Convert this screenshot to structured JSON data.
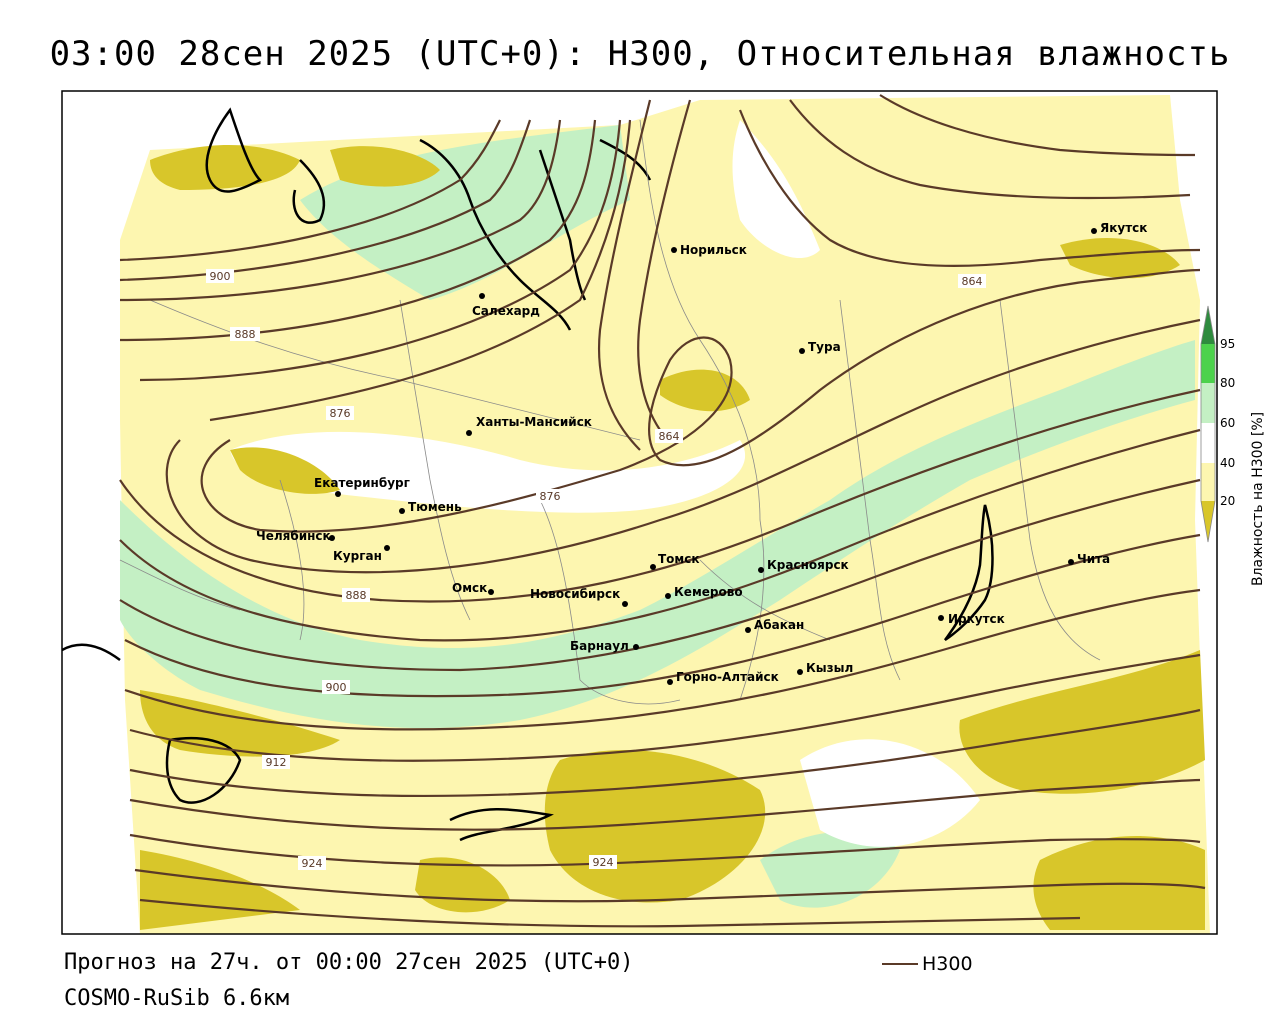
{
  "title": "03:00 28сен 2025 (UTC+0): H300, Относительная влажность",
  "footer": {
    "forecast": "Прогноз на 27ч. от 00:00 27сен 2025 (UTC+0)",
    "model": "COSMO-RuSib 6.6км",
    "legend_label": "H300",
    "legend_color": "#5a3a28"
  },
  "colorbar": {
    "title": "Влажность на H300 [%]",
    "ticks": [
      "95",
      "80",
      "60",
      "40",
      "20"
    ],
    "colors": {
      "c95": "#2e8b3e",
      "c80_95": "#4cd24c",
      "c60_80": "#c4f0c4",
      "c40_60": "#ffffff",
      "c20_40": "#fdf6b0",
      "c0_20": "#d8c62a"
    }
  },
  "cities": [
    {
      "name": "Норильск"
    },
    {
      "name": "Якутск"
    },
    {
      "name": "Салехард"
    },
    {
      "name": "Тура"
    },
    {
      "name": "Ханты-Мансийск"
    },
    {
      "name": "Екатеринбург"
    },
    {
      "name": "Тюмень"
    },
    {
      "name": "Челябинск"
    },
    {
      "name": "Курган"
    },
    {
      "name": "Омск"
    },
    {
      "name": "Новосибирск"
    },
    {
      "name": "Томск"
    },
    {
      "name": "Кемерово"
    },
    {
      "name": "Красноярск"
    },
    {
      "name": "Абакан"
    },
    {
      "name": "Барнаул"
    },
    {
      "name": "Горно-Алтайск"
    },
    {
      "name": "Кызыл"
    },
    {
      "name": "Иркутск"
    },
    {
      "name": "Чита"
    }
  ],
  "isolines": [
    "900",
    "888",
    "876",
    "876",
    "864",
    "864",
    "888",
    "900",
    "912",
    "924",
    "924"
  ]
}
